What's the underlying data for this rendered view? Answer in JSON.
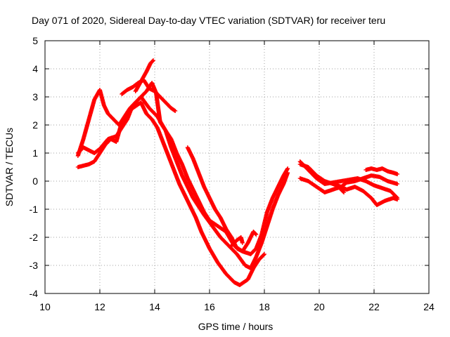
{
  "chart_data": {
    "type": "scatter",
    "title": "Day 071 of 2020, Sidereal Day-to-day VTEC variation (SDTVAR) for receiver teru",
    "xlabel": "GPS time / hours",
    "ylabel": "SDTVAR / TECUs",
    "xlim": [
      10,
      24
    ],
    "ylim": [
      -4,
      5
    ],
    "x_ticks": [
      10,
      12,
      14,
      16,
      18,
      20,
      22,
      24
    ],
    "y_ticks": [
      -4,
      -3,
      -2,
      -1,
      0,
      1,
      2,
      3,
      4,
      5
    ],
    "grid": true,
    "marker": "plus",
    "color": "#ff0000",
    "series": [
      {
        "name": "track-1",
        "points": [
          [
            11.2,
            0.9
          ],
          [
            11.4,
            1.5
          ],
          [
            11.6,
            2.2
          ],
          [
            11.8,
            2.9
          ],
          [
            12.0,
            3.25
          ],
          [
            12.15,
            2.7
          ],
          [
            12.3,
            2.4
          ],
          [
            12.5,
            2.2
          ],
          [
            12.7,
            2.0
          ],
          [
            12.9,
            2.3
          ],
          [
            13.1,
            2.6
          ],
          [
            13.4,
            2.9
          ],
          [
            13.7,
            3.2
          ],
          [
            13.9,
            3.5
          ],
          [
            14.05,
            3.15
          ],
          [
            14.2,
            2.1
          ],
          [
            14.4,
            1.8
          ],
          [
            14.6,
            1.5
          ],
          [
            14.8,
            1.0
          ],
          [
            15.0,
            0.6
          ],
          [
            15.2,
            0.1
          ],
          [
            15.4,
            -0.3
          ],
          [
            15.6,
            -0.7
          ],
          [
            15.8,
            -1.1
          ],
          [
            16.0,
            -1.4
          ],
          [
            16.3,
            -1.6
          ],
          [
            16.6,
            -1.8
          ],
          [
            16.9,
            -2.3
          ],
          [
            17.2,
            -2.5
          ],
          [
            17.5,
            -2.6
          ],
          [
            17.7,
            -2.4
          ],
          [
            17.9,
            -1.9
          ],
          [
            18.1,
            -1.1
          ],
          [
            18.3,
            -0.6
          ],
          [
            18.5,
            -0.2
          ],
          [
            18.7,
            0.2
          ],
          [
            18.85,
            0.45
          ]
        ]
      },
      {
        "name": "track-2",
        "points": [
          [
            11.2,
            0.5
          ],
          [
            11.4,
            0.55
          ],
          [
            11.6,
            0.6
          ],
          [
            11.8,
            0.7
          ],
          [
            12.0,
            1.0
          ],
          [
            12.2,
            1.3
          ],
          [
            12.4,
            1.5
          ],
          [
            12.6,
            1.4
          ],
          [
            12.8,
            2.1
          ],
          [
            13.0,
            2.4
          ],
          [
            13.2,
            2.6
          ],
          [
            13.5,
            2.8
          ],
          [
            13.7,
            2.4
          ],
          [
            13.9,
            2.2
          ],
          [
            14.1,
            1.9
          ],
          [
            14.3,
            1.4
          ],
          [
            14.5,
            0.9
          ],
          [
            14.7,
            0.4
          ],
          [
            14.9,
            -0.1
          ],
          [
            15.1,
            -0.5
          ],
          [
            15.3,
            -0.9
          ],
          [
            15.5,
            -1.3
          ],
          [
            15.7,
            -1.8
          ],
          [
            16.0,
            -2.4
          ],
          [
            16.3,
            -2.9
          ],
          [
            16.6,
            -3.3
          ],
          [
            16.9,
            -3.6
          ],
          [
            17.1,
            -3.7
          ],
          [
            17.4,
            -3.5
          ],
          [
            17.6,
            -3.1
          ],
          [
            17.8,
            -2.8
          ],
          [
            18.0,
            -2.6
          ]
        ]
      },
      {
        "name": "track-3",
        "points": [
          [
            11.2,
            1.0
          ],
          [
            11.4,
            1.2
          ],
          [
            11.6,
            1.1
          ],
          [
            11.8,
            1.0
          ],
          [
            12.0,
            1.15
          ],
          [
            12.3,
            1.5
          ],
          [
            12.6,
            1.6
          ],
          [
            12.8,
            1.9
          ],
          [
            13.0,
            2.2
          ],
          [
            13.2,
            2.7
          ],
          [
            13.5,
            3.0
          ],
          [
            13.8,
            2.6
          ],
          [
            14.1,
            2.3
          ],
          [
            14.4,
            1.8
          ],
          [
            14.6,
            1.2
          ],
          [
            14.8,
            0.7
          ],
          [
            15.0,
            0.2
          ],
          [
            15.2,
            -0.2
          ],
          [
            15.4,
            -0.6
          ],
          [
            15.6,
            -0.9
          ],
          [
            15.8,
            -1.2
          ],
          [
            16.1,
            -1.6
          ],
          [
            16.4,
            -2.0
          ],
          [
            16.7,
            -2.3
          ],
          [
            17.0,
            -2.6
          ],
          [
            17.3,
            -3.0
          ],
          [
            17.5,
            -3.1
          ],
          [
            17.7,
            -2.7
          ],
          [
            17.9,
            -2.2
          ],
          [
            18.1,
            -1.6
          ],
          [
            18.3,
            -1.0
          ],
          [
            18.5,
            -0.5
          ],
          [
            18.7,
            -0.1
          ],
          [
            18.85,
            0.3
          ]
        ]
      },
      {
        "name": "track-4",
        "points": [
          [
            12.8,
            3.1
          ],
          [
            13.0,
            3.25
          ],
          [
            13.2,
            3.35
          ],
          [
            13.4,
            3.5
          ],
          [
            13.6,
            3.6
          ],
          [
            13.8,
            3.3
          ],
          [
            14.0,
            3.2
          ],
          [
            14.2,
            3.0
          ],
          [
            14.4,
            2.8
          ],
          [
            14.6,
            2.6
          ],
          [
            14.75,
            2.5
          ]
        ]
      },
      {
        "name": "track-5",
        "points": [
          [
            13.3,
            3.2
          ],
          [
            13.5,
            3.55
          ],
          [
            13.7,
            3.9
          ],
          [
            13.85,
            4.2
          ],
          [
            13.95,
            4.3
          ]
        ]
      },
      {
        "name": "track-6",
        "points": [
          [
            15.2,
            1.2
          ],
          [
            15.4,
            0.8
          ],
          [
            15.6,
            0.3
          ],
          [
            15.8,
            -0.2
          ],
          [
            16.0,
            -0.6
          ],
          [
            16.2,
            -1.0
          ],
          [
            16.4,
            -1.3
          ],
          [
            16.6,
            -1.7
          ],
          [
            16.8,
            -2.0
          ],
          [
            17.0,
            -2.4
          ],
          [
            17.2,
            -2.5
          ],
          [
            17.4,
            -2.2
          ],
          [
            17.6,
            -1.8
          ],
          [
            17.7,
            -1.9
          ]
        ]
      },
      {
        "name": "track-7",
        "points": [
          [
            16.8,
            -2.3
          ],
          [
            17.0,
            -2.1
          ],
          [
            17.15,
            -2.0
          ],
          [
            17.2,
            -2.2
          ]
        ]
      },
      {
        "name": "track-8",
        "points": [
          [
            19.3,
            0.7
          ],
          [
            19.6,
            0.4
          ],
          [
            19.9,
            0.1
          ],
          [
            20.2,
            -0.1
          ],
          [
            20.5,
            -0.05
          ],
          [
            20.8,
            0.0
          ],
          [
            21.1,
            0.05
          ],
          [
            21.4,
            0.1
          ],
          [
            21.7,
            0.0
          ],
          [
            22.0,
            -0.15
          ],
          [
            22.3,
            -0.25
          ],
          [
            22.6,
            -0.35
          ],
          [
            22.85,
            -0.6
          ]
        ]
      },
      {
        "name": "track-9",
        "points": [
          [
            19.3,
            0.6
          ],
          [
            19.6,
            0.5
          ],
          [
            19.9,
            0.2
          ],
          [
            20.2,
            0.0
          ],
          [
            20.5,
            -0.1
          ],
          [
            20.8,
            -0.2
          ],
          [
            21.0,
            -0.3
          ],
          [
            21.3,
            -0.2
          ],
          [
            21.6,
            -0.35
          ],
          [
            21.9,
            -0.6
          ],
          [
            22.1,
            -0.85
          ],
          [
            22.4,
            -0.7
          ],
          [
            22.7,
            -0.6
          ],
          [
            22.85,
            -0.65
          ]
        ]
      },
      {
        "name": "track-10",
        "points": [
          [
            19.3,
            0.1
          ],
          [
            19.6,
            0.0
          ],
          [
            19.9,
            -0.2
          ],
          [
            20.2,
            -0.4
          ],
          [
            20.5,
            -0.3
          ],
          [
            20.8,
            -0.2
          ],
          [
            21.0,
            -0.05
          ],
          [
            21.3,
            0.0
          ],
          [
            21.6,
            0.1
          ],
          [
            21.9,
            0.2
          ],
          [
            22.2,
            0.15
          ],
          [
            22.5,
            0.0
          ],
          [
            22.85,
            -0.1
          ]
        ]
      },
      {
        "name": "track-11",
        "points": [
          [
            21.7,
            0.4
          ],
          [
            21.9,
            0.45
          ],
          [
            22.1,
            0.4
          ],
          [
            22.3,
            0.45
          ],
          [
            22.5,
            0.35
          ],
          [
            22.7,
            0.3
          ],
          [
            22.85,
            0.25
          ]
        ]
      },
      {
        "name": "track-12",
        "points": [
          [
            20.6,
            -0.1
          ],
          [
            20.8,
            -0.3
          ],
          [
            20.9,
            -0.4
          ]
        ]
      }
    ]
  }
}
